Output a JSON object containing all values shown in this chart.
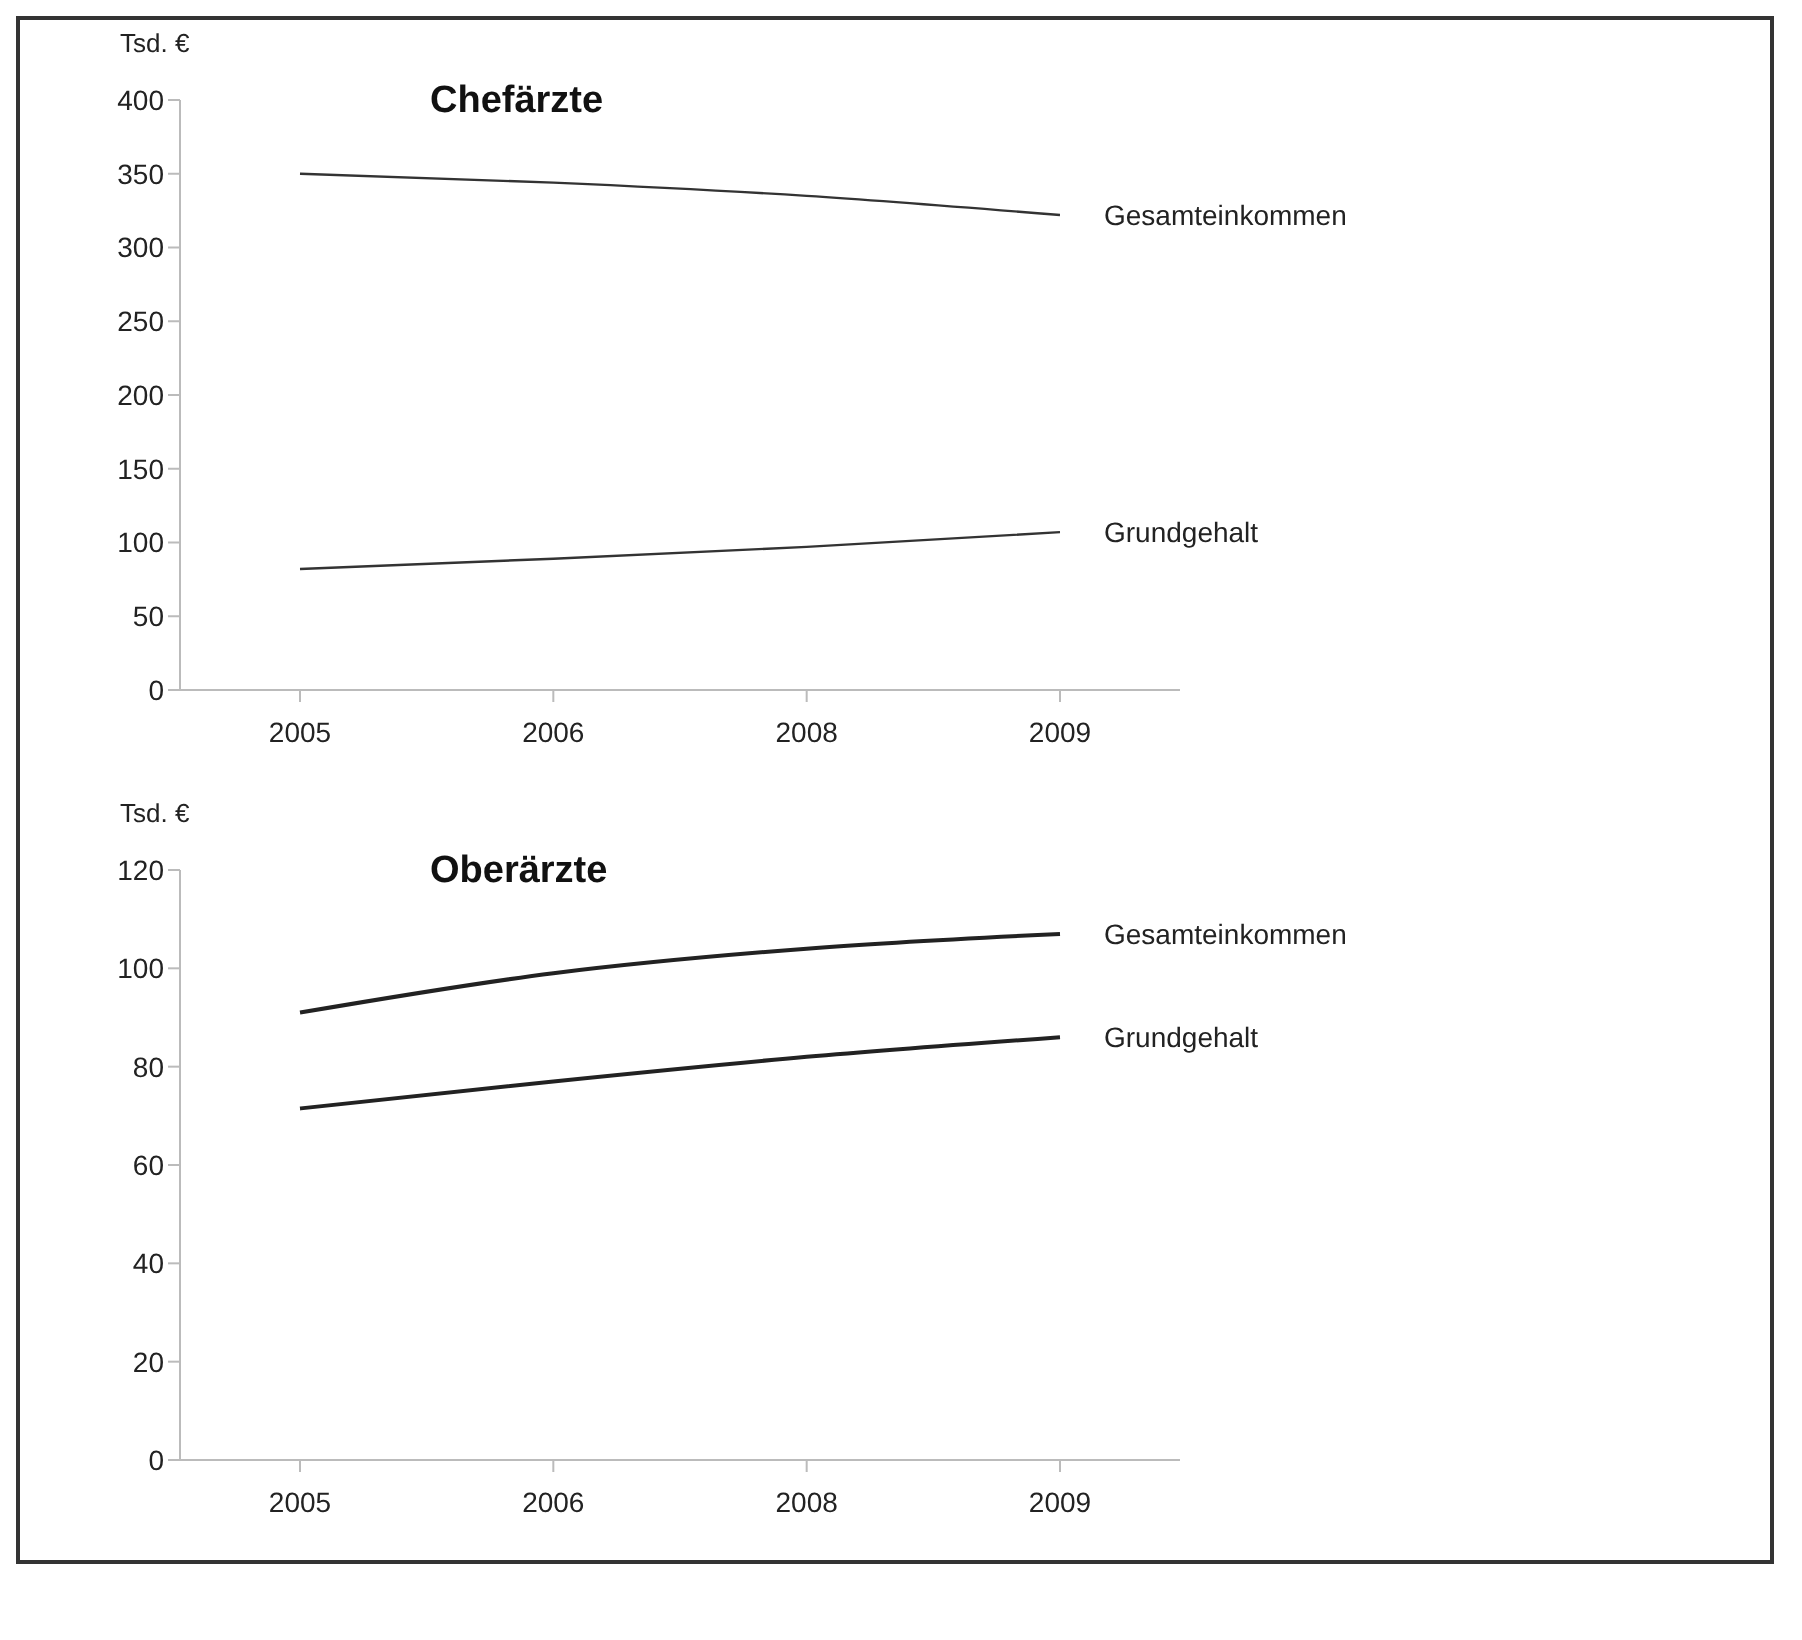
{
  "chart_data": [
    {
      "type": "line",
      "title": "Chefärzte",
      "ylabel": "Tsd. €",
      "categories": [
        "2005",
        "2006",
        "2008",
        "2009"
      ],
      "series": [
        {
          "name": "Gesamteinkommen",
          "color": "#333333",
          "values": [
            350,
            344,
            335,
            322
          ]
        },
        {
          "name": "Grundgehalt",
          "color": "#333333",
          "values": [
            82,
            89,
            97,
            107
          ]
        }
      ],
      "ylim": [
        0,
        400
      ],
      "yticks": [
        0,
        50,
        100,
        150,
        200,
        250,
        300,
        350,
        400
      ],
      "grid": false,
      "legend": false,
      "marker": "none",
      "line_style": "solid"
    },
    {
      "type": "line",
      "title": "Oberärzte",
      "ylabel": "Tsd. €",
      "categories": [
        "2005",
        "2006",
        "2008",
        "2009"
      ],
      "series": [
        {
          "name": "Gesamteinkommen",
          "color": "#222222",
          "values": [
            91,
            99,
            104,
            107
          ]
        },
        {
          "name": "Grundgehalt",
          "color": "#222222",
          "values": [
            71.5,
            77,
            82,
            86
          ]
        }
      ],
      "ylim": [
        0,
        120
      ],
      "yticks": [
        0,
        20,
        40,
        60,
        80,
        100,
        120
      ],
      "grid": false,
      "legend": false,
      "marker": "none",
      "line_style": "solid"
    }
  ]
}
